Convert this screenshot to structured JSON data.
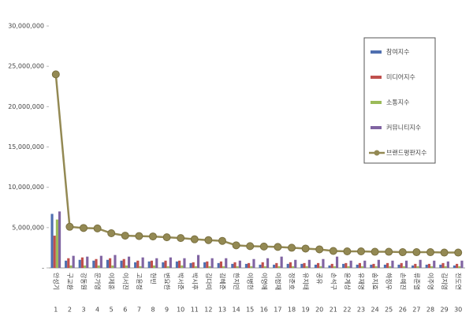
{
  "chart_data": {
    "type": "bar-line",
    "categories": [
      "안성기",
      "구교환",
      "강동원",
      "문가영",
      "이제훈",
      "이서진",
      "고윤정",
      "현빈",
      "변요한",
      "박서준",
      "박시후",
      "김다미",
      "김혜준",
      "한지민",
      "이병헌",
      "이영애",
      "이정재",
      "정준호",
      "유지태",
      "공유",
      "손석구",
      "윤계상",
      "유재명",
      "송지효",
      "하정우",
      "손예진",
      "류준열",
      "이주영",
      "김지영",
      "전도연"
    ],
    "ranks": [
      1,
      2,
      3,
      4,
      5,
      6,
      7,
      8,
      9,
      10,
      11,
      12,
      13,
      14,
      15,
      16,
      17,
      18,
      19,
      20,
      21,
      22,
      23,
      24,
      25,
      26,
      27,
      28,
      29,
      30
    ],
    "ylim": [
      0,
      30000000
    ],
    "yticks": [
      {
        "value": 0,
        "label": "-"
      },
      {
        "value": 5000000,
        "label": "5,000,000"
      },
      {
        "value": 10000000,
        "label": "10,000,000"
      },
      {
        "value": 15000000,
        "label": "15,000,000"
      },
      {
        "value": 20000000,
        "label": "20,000,000"
      },
      {
        "value": 25000000,
        "label": "25,000,000"
      },
      {
        "value": 30000000,
        "label": "30,000,000"
      }
    ],
    "legend": "upper right",
    "series": [
      {
        "name": "참여지수",
        "color": "#4f6fb0",
        "kind": "bar",
        "values": [
          6700000,
          900000,
          1000000,
          900000,
          1000000,
          900000,
          700000,
          800000,
          700000,
          800000,
          600000,
          700000,
          600000,
          500000,
          500000,
          400000,
          400000,
          500000,
          500000,
          400000,
          300000,
          500000,
          400000,
          400000,
          400000,
          400000,
          300000,
          400000,
          400000,
          300000
        ]
      },
      {
        "name": "미디어지수",
        "color": "#c0504d",
        "kind": "bar",
        "values": [
          4000000,
          1200000,
          1300000,
          1100000,
          1200000,
          1100000,
          900000,
          900000,
          900000,
          900000,
          700000,
          800000,
          800000,
          700000,
          600000,
          700000,
          600000,
          700000,
          600000,
          600000,
          500000,
          600000,
          600000,
          500000,
          600000,
          600000,
          500000,
          500000,
          600000,
          500000
        ]
      },
      {
        "name": "소통지수",
        "color": "#9bbb59",
        "kind": "bar",
        "values": [
          6000000,
          300000,
          300000,
          300000,
          300000,
          300000,
          200000,
          300000,
          200000,
          300000,
          200000,
          200000,
          200000,
          200000,
          200000,
          200000,
          200000,
          200000,
          200000,
          200000,
          200000,
          200000,
          200000,
          200000,
          200000,
          200000,
          200000,
          200000,
          200000,
          200000
        ]
      },
      {
        "name": "커뮤니티지수",
        "color": "#8064a2",
        "kind": "bar",
        "values": [
          7000000,
          1500000,
          1400000,
          1500000,
          1600000,
          1400000,
          1300000,
          1200000,
          1300000,
          1200000,
          1600000,
          1200000,
          1200000,
          900000,
          1100000,
          1200000,
          1400000,
          1000000,
          1000000,
          1100000,
          1400000,
          900000,
          900000,
          1000000,
          900000,
          900000,
          1000000,
          900000,
          800000,
          900000
        ]
      },
      {
        "name": "브랜드평판지수",
        "color": "#938953",
        "kind": "line",
        "values": [
          24000000,
          5100000,
          4950000,
          4900000,
          4300000,
          4000000,
          3950000,
          3900000,
          3800000,
          3700000,
          3550000,
          3450000,
          3350000,
          2800000,
          2700000,
          2650000,
          2600000,
          2500000,
          2400000,
          2300000,
          2100000,
          2050000,
          2050000,
          2000000,
          2000000,
          1950000,
          1950000,
          1950000,
          1900000,
          1900000
        ]
      }
    ]
  }
}
